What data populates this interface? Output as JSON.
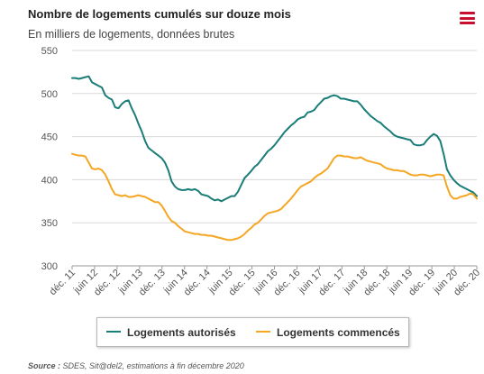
{
  "chart_data": {
    "type": "line",
    "title": "Nombre de logements cumulés sur douze mois",
    "subtitle": "En milliers de logements, données brutes",
    "ylim": [
      300,
      550
    ],
    "yticks": [
      300,
      350,
      400,
      450,
      500,
      550
    ],
    "grid": true,
    "legend_position": "bottom",
    "x_tick_labels": [
      "déc. 11",
      "juin 12",
      "déc. 12",
      "juin 13",
      "déc. 13",
      "juin 14",
      "déc. 14",
      "juin 15",
      "déc. 15",
      "juin 16",
      "déc. 16",
      "juin 17",
      "déc. 17",
      "juin 18",
      "déc. 18",
      "juin 19",
      "déc. 19",
      "juin 20",
      "déc. 20"
    ],
    "series": [
      {
        "name": "Logements autorisés",
        "color": "#1a7d78",
        "values": [
          518,
          518,
          517,
          518,
          519,
          520,
          513,
          511,
          509,
          507,
          498,
          495,
          493,
          484,
          483,
          488,
          491,
          492,
          483,
          475,
          465,
          456,
          445,
          437,
          434,
          431,
          428,
          425,
          420,
          411,
          398,
          392,
          389,
          388,
          388,
          389,
          388,
          389,
          387,
          383,
          382,
          381,
          378,
          376,
          377,
          375,
          377,
          379,
          381,
          381,
          386,
          394,
          402,
          406,
          410,
          415,
          418,
          423,
          428,
          433,
          436,
          440,
          445,
          450,
          455,
          459,
          463,
          466,
          470,
          472,
          473,
          478,
          479,
          481,
          486,
          490,
          494,
          495,
          497,
          498,
          497,
          494,
          494,
          493,
          492,
          491,
          491,
          487,
          482,
          478,
          474,
          471,
          468,
          466,
          462,
          459,
          456,
          452,
          450,
          449,
          448,
          447,
          446,
          441,
          440,
          440,
          441,
          446,
          450,
          453,
          451,
          445,
          430,
          412,
          405,
          400,
          396,
          393,
          391,
          389,
          387,
          385,
          381
        ]
      },
      {
        "name": "Logements commencés",
        "color": "#f5a623",
        "values": [
          430,
          429,
          428,
          428,
          427,
          420,
          413,
          412,
          413,
          411,
          406,
          398,
          389,
          383,
          382,
          381,
          382,
          380,
          380,
          381,
          382,
          381,
          380,
          378,
          376,
          374,
          374,
          370,
          364,
          357,
          352,
          350,
          346,
          343,
          340,
          339,
          338,
          337,
          337,
          336,
          336,
          335,
          335,
          334,
          333,
          332,
          331,
          330,
          330,
          331,
          332,
          334,
          337,
          341,
          344,
          348,
          350,
          354,
          358,
          361,
          362,
          363,
          364,
          366,
          370,
          374,
          378,
          383,
          388,
          392,
          394,
          396,
          398,
          402,
          405,
          407,
          410,
          413,
          419,
          425,
          428,
          428,
          427,
          427,
          426,
          425,
          425,
          426,
          424,
          422,
          421,
          420,
          419,
          418,
          415,
          413,
          412,
          411,
          411,
          410,
          410,
          408,
          406,
          405,
          405,
          406,
          406,
          405,
          404,
          405,
          406,
          406,
          405,
          392,
          382,
          378,
          378,
          380,
          381,
          382,
          384,
          383,
          378
        ]
      }
    ]
  },
  "legend": {
    "items": [
      {
        "label": "Logements autorisés",
        "color": "#1a7d78"
      },
      {
        "label": "Logements commencés",
        "color": "#f5a623"
      }
    ]
  },
  "source": {
    "label": "Source :",
    "text": " SDES, Sit@del2, estimations à fin décembre 2020"
  },
  "menu": {
    "icon": "hamburger-menu-icon",
    "color": "#c8102e"
  },
  "colors": {
    "grid": "#d8d8d8",
    "axis": "#999999"
  }
}
